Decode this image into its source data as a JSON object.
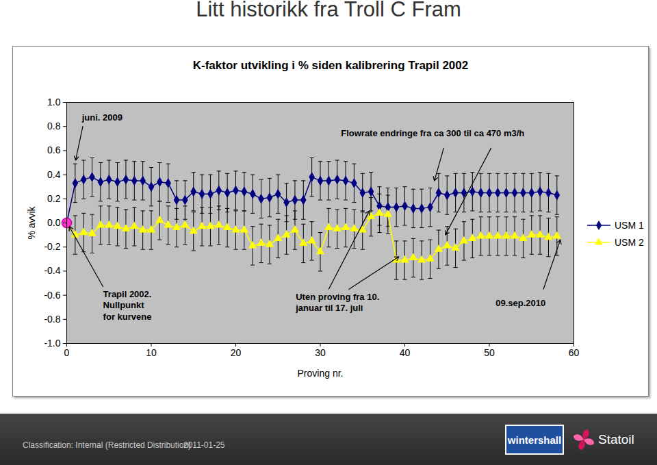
{
  "slide": {
    "title": "Litt historikk fra Troll C Fram",
    "footer": {
      "classification": "Classification: Internal (Restricted Distribution)",
      "date": "2011-01-25",
      "logos": [
        "wintershall",
        "Statoil"
      ]
    }
  },
  "chart_data": {
    "type": "line",
    "title": "K-faktor utvikling i % siden kalibrering Trapil 2002",
    "x_label": "Proving nr.",
    "y_label": "% avvik",
    "x": [
      0,
      1,
      2,
      3,
      4,
      5,
      6,
      7,
      8,
      9,
      10,
      11,
      12,
      13,
      14,
      15,
      16,
      17,
      18,
      19,
      20,
      21,
      22,
      23,
      24,
      25,
      26,
      27,
      28,
      29,
      30,
      31,
      32,
      33,
      34,
      35,
      36,
      37,
      38,
      39,
      40,
      41,
      42,
      43,
      44,
      45,
      46,
      47,
      48,
      49,
      50,
      51,
      52,
      53,
      54,
      55,
      56,
      57,
      58
    ],
    "series": [
      {
        "name": "USM 1",
        "color": "#000080",
        "marker": "diamond",
        "values": [
          0,
          0.33,
          0.36,
          0.38,
          0.34,
          0.36,
          0.34,
          0.36,
          0.35,
          0.35,
          0.3,
          0.34,
          0.33,
          0.19,
          0.19,
          0.26,
          0.24,
          0.24,
          0.27,
          0.25,
          0.27,
          0.26,
          0.24,
          0.2,
          0.21,
          0.24,
          0.17,
          0.19,
          0.19,
          0.38,
          0.35,
          0.35,
          0.36,
          0.35,
          0.33,
          0.25,
          0.26,
          0.14,
          0.13,
          0.13,
          0.14,
          0.12,
          0.12,
          0.13,
          0.25,
          0.23,
          0.25,
          0.25,
          0.26,
          0.25,
          0.25,
          0.25,
          0.25,
          0.25,
          0.25,
          0.25,
          0.26,
          0.25,
          0.23
        ],
        "errors": [
          null,
          0.16,
          0.16,
          0.16,
          0.16,
          0.16,
          0.16,
          0.16,
          0.16,
          0.16,
          0.16,
          0.16,
          0.16,
          0.16,
          0.16,
          0.16,
          0.16,
          0.16,
          0.16,
          0.16,
          0.16,
          0.16,
          0.16,
          0.16,
          0.16,
          0.16,
          0.16,
          0.16,
          0.16,
          0.16,
          0.16,
          0.16,
          0.16,
          0.16,
          0.16,
          0.16,
          0.16,
          0.16,
          0.16,
          0.16,
          0.16,
          0.16,
          0.16,
          0.16,
          0.16,
          0.16,
          0.16,
          0.16,
          0.16,
          0.16,
          0.16,
          0.16,
          0.16,
          0.16,
          0.16,
          0.16,
          0.16,
          0.16,
          0.16
        ]
      },
      {
        "name": "USM 2",
        "color": "#ffff00",
        "marker": "triangle",
        "values": [
          0,
          -0.1,
          -0.08,
          -0.09,
          -0.02,
          -0.02,
          -0.03,
          -0.05,
          -0.03,
          -0.06,
          -0.06,
          0.02,
          -0.02,
          -0.04,
          -0.02,
          -0.07,
          -0.03,
          -0.03,
          -0.02,
          -0.04,
          -0.06,
          -0.06,
          -0.19,
          -0.17,
          -0.18,
          -0.13,
          -0.1,
          -0.06,
          -0.17,
          -0.15,
          -0.24,
          -0.04,
          -0.05,
          -0.04,
          -0.05,
          -0.06,
          0.05,
          0.08,
          0.07,
          -0.31,
          -0.31,
          -0.29,
          -0.31,
          -0.3,
          -0.22,
          -0.19,
          -0.21,
          -0.15,
          -0.13,
          -0.11,
          -0.11,
          -0.11,
          -0.11,
          -0.11,
          -0.13,
          -0.1,
          -0.1,
          -0.12,
          -0.11
        ],
        "errors": [
          null,
          0.16,
          0.16,
          0.16,
          0.16,
          0.16,
          0.16,
          0.16,
          0.16,
          0.16,
          0.16,
          0.16,
          0.16,
          0.16,
          0.16,
          0.16,
          0.16,
          0.16,
          0.16,
          0.16,
          0.16,
          0.16,
          0.16,
          0.16,
          0.16,
          0.16,
          0.16,
          0.16,
          0.16,
          0.16,
          0.16,
          0.16,
          0.16,
          0.16,
          0.16,
          0.16,
          0.16,
          0.16,
          0.16,
          0.16,
          0.16,
          0.16,
          0.16,
          0.16,
          0.16,
          0.16,
          0.16,
          0.16,
          0.16,
          0.16,
          0.16,
          0.16,
          0.16,
          0.16,
          0.16,
          0.16,
          0.16,
          0.16,
          0.16
        ]
      }
    ],
    "xlim": [
      0,
      60
    ],
    "xticks": [
      0,
      10,
      20,
      30,
      40,
      50,
      60
    ],
    "ylim": [
      -1,
      1
    ],
    "yticks": [
      {
        "value": -1,
        "label": "-1.0"
      },
      -0.8,
      -0.6,
      -0.4,
      -0.2,
      {
        "value": 0,
        "label": "0.0"
      },
      0.2,
      0.4,
      0.6,
      0.8,
      {
        "value": 1,
        "label": "1.0"
      }
    ],
    "grid": false,
    "legend": "right",
    "annotations": [
      "juni. 2009",
      "Flowrate endringe fra ca 300 til ca 470 m3/h",
      "Trapil 2002.\nNullpunkt\nfor kurvene",
      "Uten proving fra 10.\njanuar til 17. juli",
      "09.sep.2010"
    ]
  }
}
